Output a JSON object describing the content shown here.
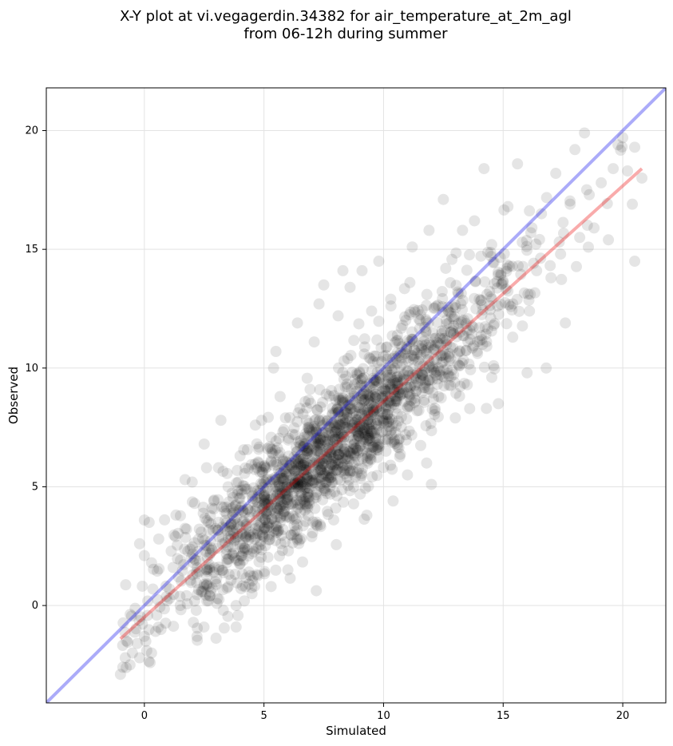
{
  "chart_data": {
    "type": "scatter",
    "title_lines": [
      "X-Y plot at vi.vegagerdin.34382 for air_temperature_at_2m_agl",
      "from 06-12h during summer"
    ],
    "xlabel": "Simulated",
    "ylabel": "Observed",
    "xlim": [
      -4.1,
      21.8
    ],
    "ylim": [
      -4.1,
      21.8
    ],
    "xticks": [
      0,
      5,
      10,
      15,
      20
    ],
    "yticks": [
      0,
      5,
      10,
      15,
      20
    ],
    "grid": true,
    "legend": "none",
    "point_color": "#000000",
    "point_opacity": 0.1,
    "points_from_image": [
      [
        -1.0,
        -2.9
      ],
      [
        -0.9,
        -2.6
      ],
      [
        -0.8,
        -2.2
      ],
      [
        -0.6,
        -2.5
      ],
      [
        -0.5,
        -2.0
      ],
      [
        -0.3,
        -1.6
      ],
      [
        -0.2,
        -2.2
      ],
      [
        0.0,
        -1.3
      ],
      [
        0.1,
        -1.9
      ],
      [
        0.3,
        -2.0
      ],
      [
        -0.2,
        2.6
      ],
      [
        0.0,
        3.6
      ],
      [
        0.0,
        2.1
      ],
      [
        0.2,
        3.5
      ],
      [
        0.3,
        1.8
      ],
      [
        0.6,
        2.8
      ],
      [
        1.2,
        1.6
      ],
      [
        1.5,
        0.0
      ],
      [
        1.7,
        5.3
      ],
      [
        2.0,
        5.2
      ],
      [
        2.1,
        4.3
      ],
      [
        2.2,
        -1.3
      ],
      [
        2.5,
        6.8
      ],
      [
        2.6,
        5.8
      ],
      [
        2.7,
        0.8
      ],
      [
        3.1,
        5.8
      ],
      [
        3.2,
        7.8
      ],
      [
        3.3,
        -0.2
      ],
      [
        3.5,
        5.0
      ],
      [
        3.8,
        4.2
      ],
      [
        4.0,
        6.3
      ],
      [
        4.2,
        2.4
      ],
      [
        4.4,
        3.1
      ],
      [
        4.5,
        0.5
      ],
      [
        4.7,
        5.8
      ],
      [
        4.9,
        7.8
      ],
      [
        5.0,
        4.4
      ],
      [
        5.2,
        3.3
      ],
      [
        5.3,
        6.1
      ],
      [
        5.3,
        0.8
      ],
      [
        5.5,
        10.7
      ],
      [
        5.4,
        10.0
      ],
      [
        5.6,
        4.9
      ],
      [
        5.8,
        3.2
      ],
      [
        5.9,
        7.9
      ],
      [
        6.0,
        1.5
      ],
      [
        6.2,
        4.6
      ],
      [
        6.4,
        11.9
      ],
      [
        6.5,
        8.3
      ],
      [
        6.6,
        5.2
      ],
      [
        6.8,
        6.4
      ],
      [
        7.0,
        2.9
      ],
      [
        7.1,
        11.1
      ],
      [
        7.2,
        7.3
      ],
      [
        7.3,
        12.7
      ],
      [
        7.5,
        13.5
      ],
      [
        7.6,
        8.9
      ],
      [
        7.8,
        6.4
      ],
      [
        8.0,
        4.1
      ],
      [
        8.1,
        12.2
      ],
      [
        8.3,
        14.1
      ],
      [
        8.4,
        9.2
      ],
      [
        8.6,
        13.4
      ],
      [
        8.7,
        7.6
      ],
      [
        8.9,
        5.6
      ],
      [
        9.1,
        14.1
      ],
      [
        9.2,
        9.6
      ],
      [
        9.3,
        3.8
      ],
      [
        9.5,
        12.4
      ],
      [
        9.7,
        8.3
      ],
      [
        9.8,
        14.5
      ],
      [
        10.0,
        10.5
      ],
      [
        10.1,
        6.5
      ],
      [
        10.3,
        12.9
      ],
      [
        10.4,
        4.4
      ],
      [
        10.6,
        9.4
      ],
      [
        10.8,
        11.8
      ],
      [
        11.0,
        5.5
      ],
      [
        11.1,
        13.6
      ],
      [
        11.2,
        15.1
      ],
      [
        11.4,
        8.2
      ],
      [
        11.6,
        10.8
      ],
      [
        11.8,
        6.0
      ],
      [
        11.9,
        15.8
      ],
      [
        12.0,
        5.1
      ],
      [
        12.2,
        12.6
      ],
      [
        12.3,
        8.8
      ],
      [
        12.5,
        17.1
      ],
      [
        12.6,
        14.2
      ],
      [
        12.8,
        10.4
      ],
      [
        13.0,
        7.9
      ],
      [
        13.1,
        13.2
      ],
      [
        13.3,
        15.8
      ],
      [
        13.5,
        9.3
      ],
      [
        13.6,
        11.6
      ],
      [
        13.8,
        16.2
      ],
      [
        14.0,
        12.9
      ],
      [
        14.2,
        18.4
      ],
      [
        14.3,
        8.3
      ],
      [
        14.5,
        14.7
      ],
      [
        14.6,
        10.1
      ],
      [
        14.8,
        8.5
      ],
      [
        15.0,
        13.6
      ],
      [
        15.2,
        16.8
      ],
      [
        15.4,
        11.3
      ],
      [
        15.6,
        18.6
      ],
      [
        15.8,
        15.3
      ],
      [
        16.0,
        9.8
      ],
      [
        16.1,
        12.4
      ],
      [
        16.4,
        14.1
      ],
      [
        16.6,
        16.5
      ],
      [
        16.8,
        10.0
      ],
      [
        17.0,
        13.8
      ],
      [
        17.2,
        18.2
      ],
      [
        17.4,
        14.8
      ],
      [
        17.6,
        11.9
      ],
      [
        17.8,
        16.9
      ],
      [
        18.0,
        19.2
      ],
      [
        18.2,
        15.5
      ],
      [
        18.4,
        19.9
      ],
      [
        18.6,
        17.3
      ],
      [
        18.8,
        15.9
      ],
      [
        19.1,
        17.8
      ],
      [
        19.4,
        15.4
      ],
      [
        19.6,
        18.4
      ],
      [
        19.8,
        19.4
      ],
      [
        20.0,
        19.7
      ],
      [
        20.2,
        18.3
      ],
      [
        20.4,
        16.9
      ],
      [
        20.5,
        19.3
      ],
      [
        20.5,
        14.5
      ],
      [
        20.8,
        18.0
      ]
    ],
    "reference_lines": [
      {
        "name": "",
        "kind": "identity",
        "color": "#0000ee",
        "opacity": 0.33,
        "x": [
          -4.1,
          21.8
        ],
        "y": [
          -4.1,
          21.8
        ]
      },
      {
        "name": "",
        "kind": "fit",
        "color": "#ee0000",
        "opacity": 0.33,
        "x": [
          -1.0,
          20.8
        ],
        "y": [
          -1.4,
          18.4
        ]
      }
    ]
  }
}
